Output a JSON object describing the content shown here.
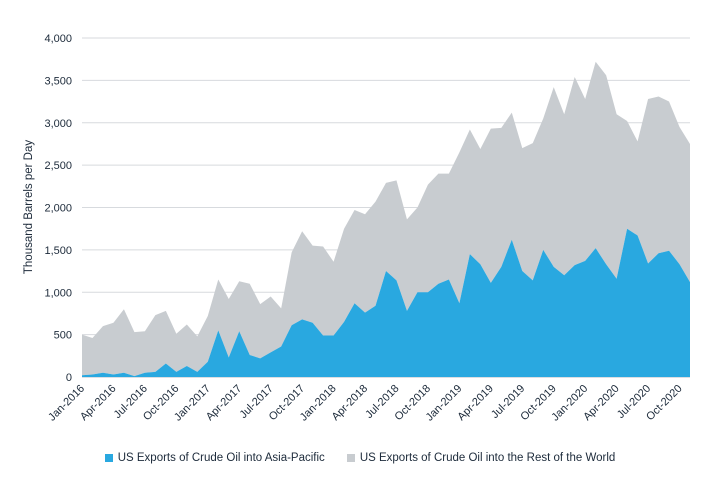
{
  "chart_data": {
    "type": "area",
    "stacked": true,
    "ylabel": "Thousand Barrels per Day",
    "ylim": [
      0,
      4000
    ],
    "yticks": [
      0,
      500,
      1000,
      1500,
      2000,
      2500,
      3000,
      3500,
      4000
    ],
    "ytick_labels": [
      "0",
      "500",
      "1,000",
      "1,500",
      "2,000",
      "2,500",
      "3,000",
      "3,500",
      "4,000"
    ],
    "xtick_labels": [
      "Jan-2016",
      "Apr-2016",
      "Jul-2016",
      "Oct-2016",
      "Jan-2017",
      "Apr-2017",
      "Jul-2017",
      "Oct-2017",
      "Jan-2018",
      "Apr-2018",
      "Jul-2018",
      "Oct-2018",
      "Jan-2019",
      "Apr-2019",
      "Jul-2019",
      "Oct-2019",
      "Jan-2020",
      "Apr-2020",
      "Jul-2020",
      "Oct-2020"
    ],
    "grid": true,
    "legend_position": "bottom",
    "x": [
      "Jan-2016",
      "Feb-2016",
      "Mar-2016",
      "Apr-2016",
      "May-2016",
      "Jun-2016",
      "Jul-2016",
      "Aug-2016",
      "Sep-2016",
      "Oct-2016",
      "Nov-2016",
      "Dec-2016",
      "Jan-2017",
      "Feb-2017",
      "Mar-2017",
      "Apr-2017",
      "May-2017",
      "Jun-2017",
      "Jul-2017",
      "Aug-2017",
      "Sep-2017",
      "Oct-2017",
      "Nov-2017",
      "Dec-2017",
      "Jan-2018",
      "Feb-2018",
      "Mar-2018",
      "Apr-2018",
      "May-2018",
      "Jun-2018",
      "Jul-2018",
      "Aug-2018",
      "Sep-2018",
      "Oct-2018",
      "Nov-2018",
      "Dec-2018",
      "Jan-2019",
      "Feb-2019",
      "Mar-2019",
      "Apr-2019",
      "May-2019",
      "Jun-2019",
      "Jul-2019",
      "Aug-2019",
      "Sep-2019",
      "Oct-2019",
      "Nov-2019",
      "Dec-2019",
      "Jan-2020",
      "Feb-2020",
      "Mar-2020",
      "Apr-2020",
      "May-2020",
      "Jun-2020",
      "Jul-2020",
      "Aug-2020",
      "Sep-2020",
      "Oct-2020",
      "Nov-2020"
    ],
    "series": [
      {
        "name": "US Exports of Crude Oil into Asia-Pacific",
        "color": "#29a8e0",
        "values": [
          20,
          30,
          50,
          30,
          50,
          10,
          50,
          60,
          160,
          60,
          130,
          60,
          180,
          550,
          230,
          540,
          260,
          220,
          290,
          360,
          610,
          680,
          640,
          490,
          490,
          650,
          870,
          760,
          840,
          1250,
          1140,
          780,
          1000,
          1000,
          1100,
          1150,
          870,
          1450,
          1330,
          1110,
          1300,
          1620,
          1250,
          1140,
          1500,
          1300,
          1200,
          1320,
          1370,
          1520,
          1330,
          1160,
          1750,
          1670,
          1340,
          1460,
          1490,
          1330,
          1120
        ]
      },
      {
        "name": "US Exports of Crude Oil into the Rest of the World",
        "color": "#c8ccd0",
        "values": [
          480,
          430,
          550,
          610,
          750,
          520,
          490,
          670,
          620,
          450,
          490,
          420,
          540,
          600,
          690,
          590,
          840,
          640,
          660,
          450,
          860,
          1040,
          910,
          1050,
          870,
          1100,
          1100,
          1160,
          1230,
          1040,
          1180,
          1080,
          1000,
          1270,
          1300,
          1250,
          1780,
          1470,
          1360,
          1820,
          1640,
          1500,
          1450,
          1620,
          1550,
          2120,
          1900,
          2220,
          1910,
          2200,
          2230,
          1940,
          1270,
          1110,
          1940,
          1850,
          1760,
          1620,
          1630
        ]
      }
    ]
  }
}
